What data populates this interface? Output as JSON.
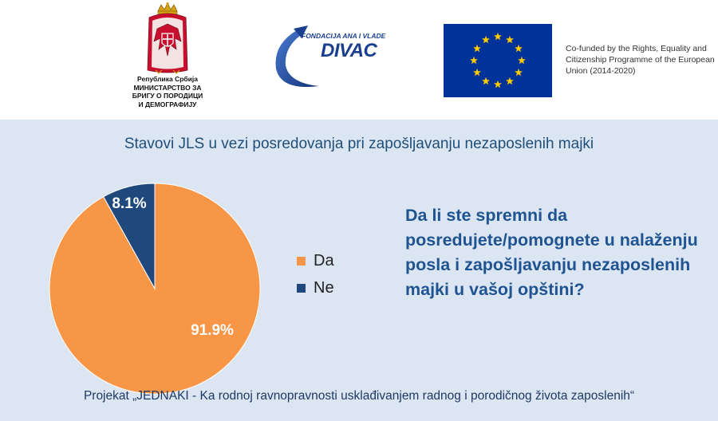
{
  "header": {
    "ministry": {
      "line1": "Република Србија",
      "line2": "МИНИСТАРСТВО ЗА",
      "line3": "БРИГУ О ПОРОДИЦИ",
      "line4": "И ДЕМОГРАФИЈУ",
      "icon": "serbian-coat-of-arms-icon"
    },
    "divac": {
      "small": "FONDACIJA ANA I VLADE",
      "big": "DIVAC",
      "icon": "divac-swoosh-icon"
    },
    "eu": {
      "text": "Co-funded by the Rights, Equality and Citizenship Programme of the European Union (2014-2020)",
      "icon": "eu-flag-icon",
      "flag_color": "#003399",
      "star_color": "#ffcc00"
    }
  },
  "chart_data": {
    "type": "pie",
    "title": "Stavovi JLS u vezi posredovanja pri zapošljavanju nezaposlenih majki",
    "categories": [
      "Da",
      "Ne"
    ],
    "values": [
      91.9,
      8.1
    ],
    "labels": [
      "91.9%",
      "8.1%"
    ],
    "colors": [
      "#f79646",
      "#1f497d"
    ],
    "legend": "right"
  },
  "question": "Da li ste spremni da posredujete/pomognete u nalaženju posla i zapošljavanju nezaposlenih majki u vašoj opštini?",
  "footer": "Projekat „JEDNAKI - Ka rodnoj ravnopravnosti usklađivanjem radnog i porodičnog života zaposlenih“",
  "colors": {
    "panel_bg": "#dce6f2",
    "title": "#1f4e79",
    "question": "#1f5391"
  }
}
